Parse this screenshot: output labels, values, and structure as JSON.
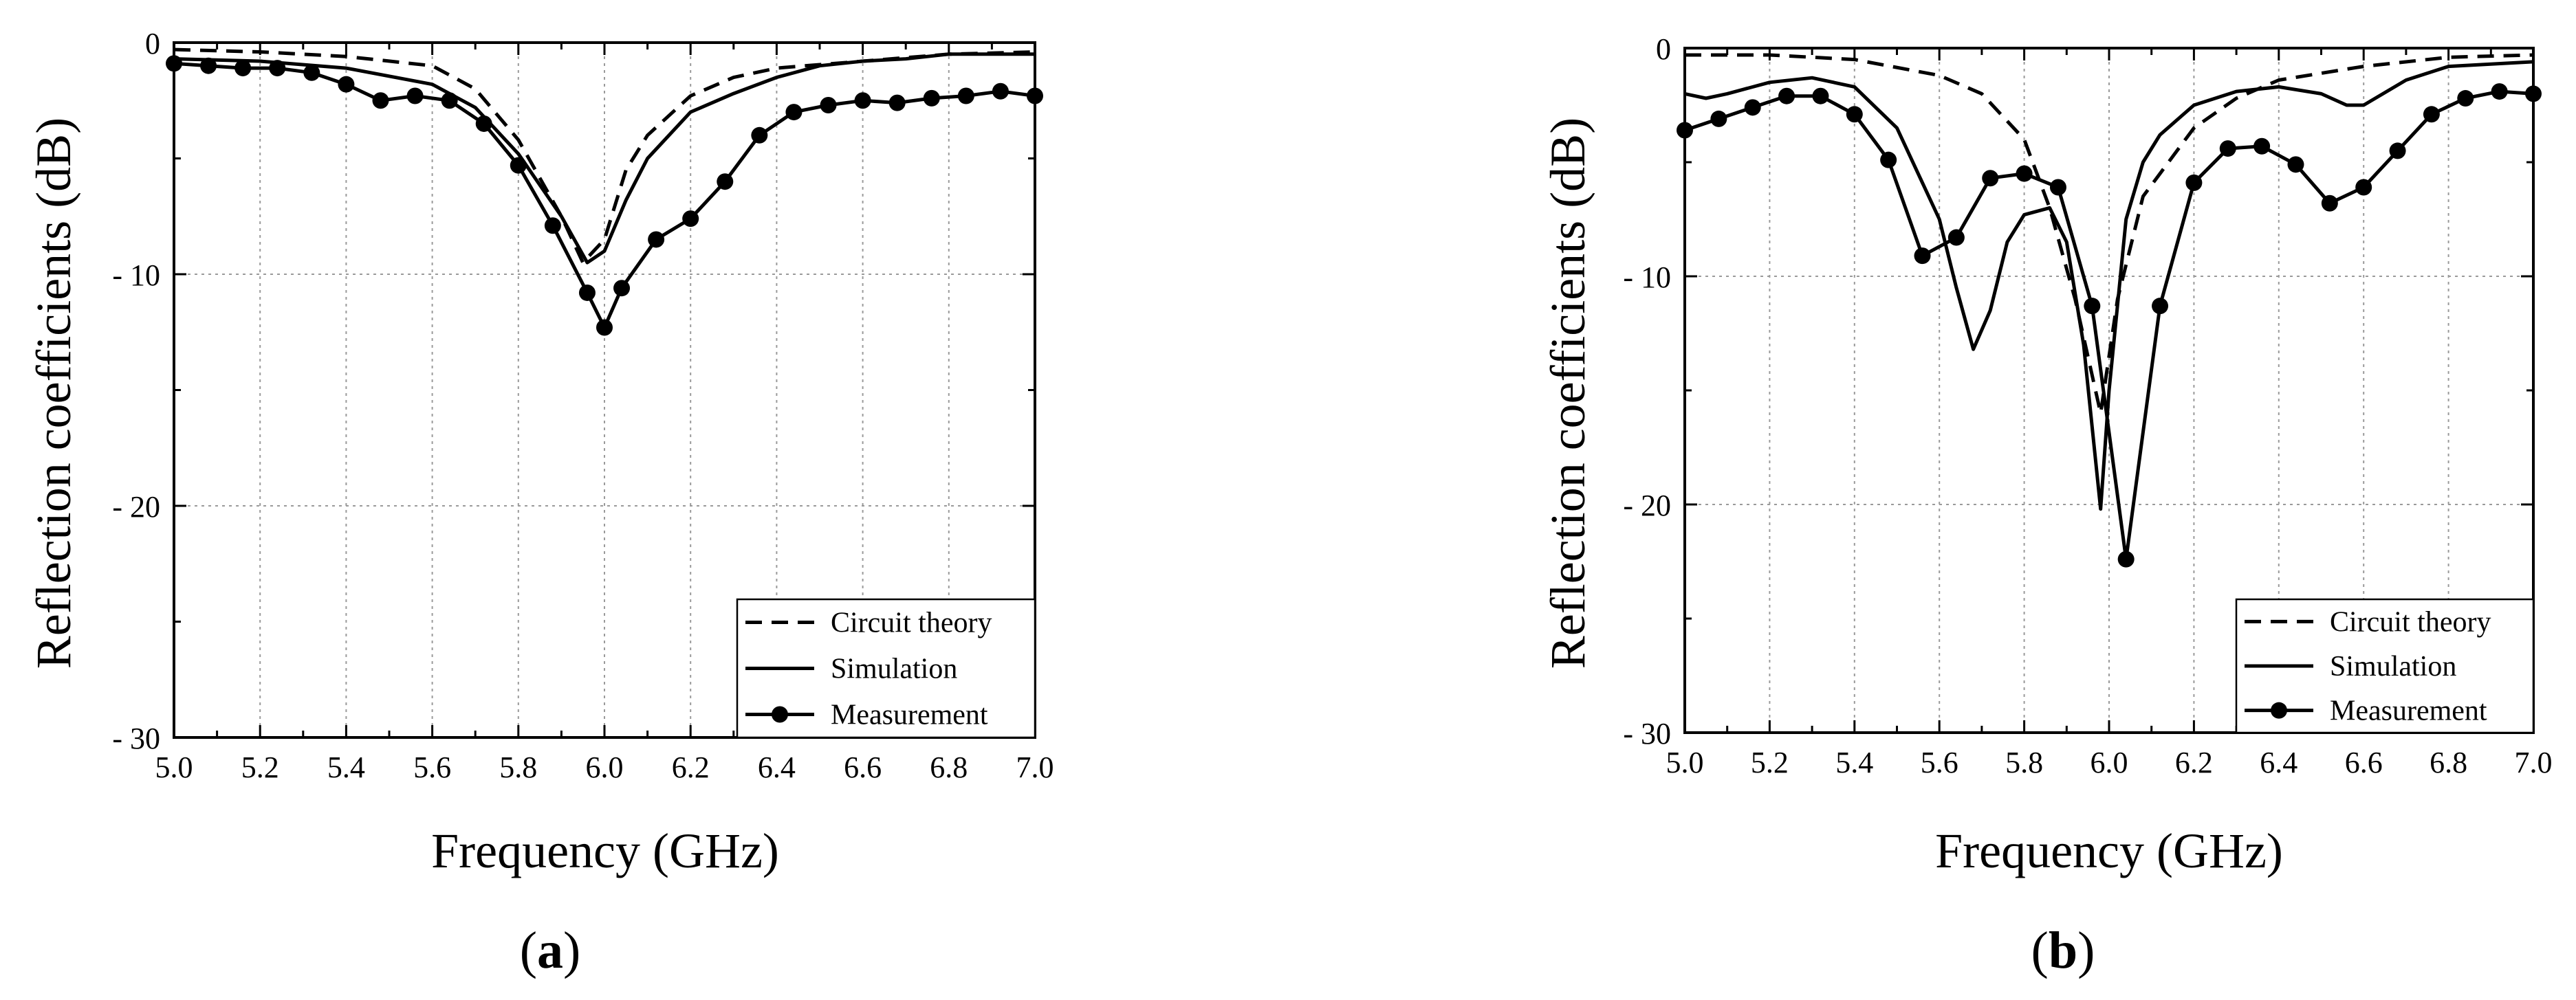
{
  "chart_data": [
    {
      "type": "line",
      "panel_label": "a",
      "xlabel": "Frequency (GHz)",
      "ylabel": "Reflection coefficients (dB)",
      "xlim": [
        5.0,
        7.0
      ],
      "ylim": [
        -30,
        0
      ],
      "xticks": [
        "5.0",
        "5.2",
        "5.4",
        "5.6",
        "5.8",
        "6.0",
        "6.2",
        "6.4",
        "6.6",
        "6.8",
        "7.0"
      ],
      "yticks": [
        "0",
        "-10",
        "-20",
        "-30"
      ],
      "legend_position": "bottom-right",
      "series": [
        {
          "name": "Circuit theory",
          "style": "dashed",
          "x": [
            5.0,
            5.2,
            5.4,
            5.6,
            5.7,
            5.8,
            5.9,
            5.95,
            6.0,
            6.05,
            6.1,
            6.2,
            6.3,
            6.4,
            6.6,
            6.8,
            7.0
          ],
          "y": [
            -0.3,
            -0.4,
            -0.6,
            -1.0,
            -2.0,
            -4.2,
            -7.5,
            -9.5,
            -8.5,
            -5.5,
            -4.0,
            -2.3,
            -1.5,
            -1.1,
            -0.8,
            -0.5,
            -0.4
          ]
        },
        {
          "name": "Simulation",
          "style": "solid",
          "x": [
            5.0,
            5.2,
            5.4,
            5.6,
            5.7,
            5.8,
            5.9,
            5.96,
            6.0,
            6.05,
            6.1,
            6.2,
            6.3,
            6.4,
            6.5,
            6.6,
            6.7,
            6.8,
            7.0
          ],
          "y": [
            -0.7,
            -0.8,
            -1.1,
            -1.8,
            -2.8,
            -4.8,
            -7.5,
            -9.5,
            -9.0,
            -6.8,
            -5.0,
            -3.0,
            -2.2,
            -1.5,
            -1.0,
            -0.8,
            -0.7,
            -0.5,
            -0.5
          ]
        },
        {
          "name": "Measurement",
          "style": "solid-marker",
          "x": [
            5.0,
            5.08,
            5.16,
            5.24,
            5.32,
            5.4,
            5.48,
            5.56,
            5.64,
            5.72,
            5.8,
            5.88,
            5.96,
            6.0,
            6.04,
            6.12,
            6.2,
            6.28,
            6.36,
            6.44,
            6.52,
            6.6,
            6.68,
            6.76,
            6.84,
            6.92,
            7.0
          ],
          "y": [
            -0.9,
            -1.0,
            -1.1,
            -1.1,
            -1.3,
            -1.8,
            -2.5,
            -2.3,
            -2.5,
            -3.5,
            -5.3,
            -7.9,
            -10.8,
            -12.3,
            -10.6,
            -8.5,
            -7.6,
            -6.0,
            -4.0,
            -3.0,
            -2.7,
            -2.5,
            -2.6,
            -2.4,
            -2.3,
            -2.1,
            -2.3
          ]
        }
      ]
    },
    {
      "type": "line",
      "panel_label": "b",
      "xlabel": "Frequency (GHz)",
      "ylabel": "Reflection coefficients (dB)",
      "xlim": [
        5.0,
        7.0
      ],
      "ylim": [
        -30,
        0
      ],
      "xticks": [
        "5.0",
        "5.2",
        "5.4",
        "5.6",
        "5.8",
        "6.0",
        "6.2",
        "6.4",
        "6.6",
        "6.8",
        "7.0"
      ],
      "yticks": [
        "0",
        "-10",
        "-20",
        "-30"
      ],
      "legend_position": "bottom-right",
      "series": [
        {
          "name": "Circuit theory",
          "style": "dashed",
          "x": [
            5.0,
            5.2,
            5.4,
            5.6,
            5.7,
            5.8,
            5.86,
            5.92,
            5.98,
            6.02,
            6.08,
            6.2,
            6.3,
            6.4,
            6.6,
            6.8,
            7.0
          ],
          "y": [
            -0.3,
            -0.3,
            -0.5,
            -1.2,
            -2.0,
            -4.0,
            -7.0,
            -11.0,
            -16.0,
            -11.0,
            -6.5,
            -3.5,
            -2.2,
            -1.4,
            -0.8,
            -0.4,
            -0.3
          ]
        },
        {
          "name": "Simulation",
          "style": "solid",
          "x": [
            5.0,
            5.05,
            5.1,
            5.2,
            5.3,
            5.4,
            5.5,
            5.6,
            5.64,
            5.68,
            5.72,
            5.76,
            5.8,
            5.86,
            5.9,
            5.94,
            5.98,
            6.0,
            6.04,
            6.08,
            6.12,
            6.2,
            6.3,
            6.4,
            6.5,
            6.56,
            6.6,
            6.7,
            6.8,
            7.0
          ],
          "y": [
            -2.0,
            -2.2,
            -2.0,
            -1.5,
            -1.3,
            -1.7,
            -3.5,
            -7.5,
            -10.5,
            -13.2,
            -11.5,
            -8.5,
            -7.3,
            -7.0,
            -8.5,
            -13.0,
            -20.2,
            -15.0,
            -7.5,
            -5.0,
            -3.8,
            -2.5,
            -1.9,
            -1.7,
            -2.0,
            -2.5,
            -2.5,
            -1.4,
            -0.8,
            -0.6
          ]
        },
        {
          "name": "Measurement",
          "style": "solid-marker",
          "x": [
            5.0,
            5.08,
            5.16,
            5.24,
            5.32,
            5.4,
            5.48,
            5.56,
            5.64,
            5.72,
            5.8,
            5.88,
            5.96,
            6.04,
            6.12,
            6.2,
            6.28,
            6.36,
            6.44,
            6.52,
            6.6,
            6.68,
            6.76,
            6.84,
            6.92,
            7.0
          ],
          "y": [
            -3.6,
            -3.1,
            -2.6,
            -2.1,
            -2.1,
            -2.9,
            -4.9,
            -9.1,
            -8.3,
            -5.7,
            -5.5,
            -6.1,
            -11.3,
            -22.4,
            -11.3,
            -5.9,
            -4.4,
            -4.3,
            -5.1,
            -6.8,
            -6.1,
            -4.5,
            -2.9,
            -2.2,
            -1.9,
            -2.0
          ]
        }
      ]
    }
  ]
}
